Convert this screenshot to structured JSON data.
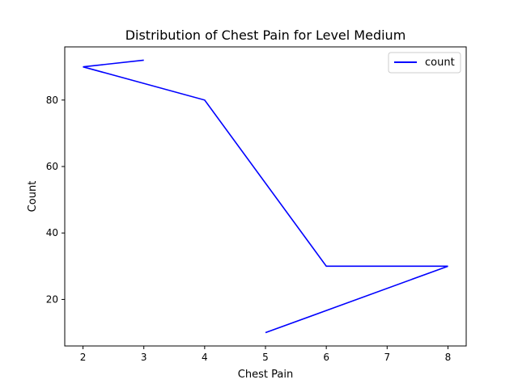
{
  "chart_data": {
    "type": "line",
    "title": "Distribution of Chest Pain for Level Medium",
    "xlabel": "Chest Pain",
    "ylabel": "Count",
    "xlim": [
      1.7,
      8.3
    ],
    "ylim": [
      6,
      96
    ],
    "xticks": [
      2,
      3,
      4,
      5,
      6,
      7,
      8
    ],
    "yticks": [
      20,
      40,
      60,
      80
    ],
    "grid": false,
    "legend_position": "top-right",
    "series": [
      {
        "name": "count",
        "color": "#0000ff",
        "x": [
          3,
          2,
          4,
          6,
          8,
          5
        ],
        "y": [
          92,
          90,
          80,
          30,
          30,
          10
        ]
      }
    ]
  }
}
